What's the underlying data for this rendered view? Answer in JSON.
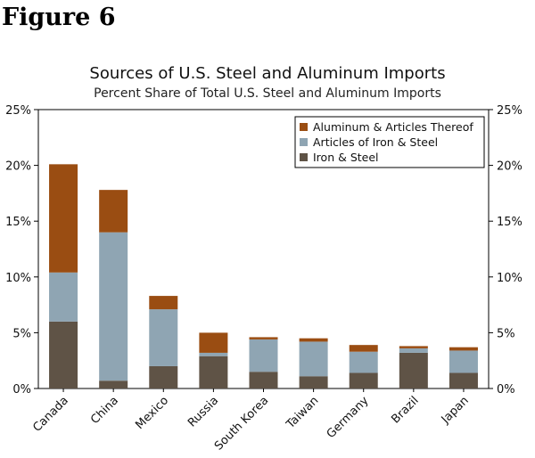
{
  "figure_label": "Figure 6",
  "chart_data": {
    "type": "bar",
    "stacked": true,
    "title": "Sources of U.S. Steel and Aluminum Imports",
    "subtitle": "Percent Share of Total U.S. Steel and Aluminum Imports",
    "xlabel": "",
    "ylabel": "",
    "ylim": [
      0,
      25
    ],
    "yticks": [
      "0%",
      "5%",
      "10%",
      "15%",
      "20%",
      "25%"
    ],
    "ytick_values": [
      0,
      5,
      10,
      15,
      20,
      25
    ],
    "grid": false,
    "legend_position": "top-right",
    "categories": [
      "Canada",
      "China",
      "Mexico",
      "Russia",
      "South Korea",
      "Taiwan",
      "Germany",
      "Brazil",
      "Japan"
    ],
    "series": [
      {
        "name": "Iron & Steel",
        "color": "#5f5346",
        "values": [
          6.0,
          0.7,
          2.0,
          2.9,
          1.5,
          1.1,
          1.4,
          3.2,
          1.4
        ]
      },
      {
        "name": "Articles of Iron & Steel",
        "color": "#8fa5b3",
        "values": [
          4.4,
          13.3,
          5.1,
          0.3,
          2.9,
          3.1,
          1.9,
          0.4,
          2.0
        ]
      },
      {
        "name": "Aluminum & Articles Thereof",
        "color": "#9a4d12",
        "values": [
          9.7,
          3.8,
          1.2,
          1.8,
          0.2,
          0.3,
          0.6,
          0.2,
          0.3
        ]
      }
    ],
    "legend_order": [
      "Aluminum & Articles Thereof",
      "Articles of Iron & Steel",
      "Iron & Steel"
    ]
  }
}
